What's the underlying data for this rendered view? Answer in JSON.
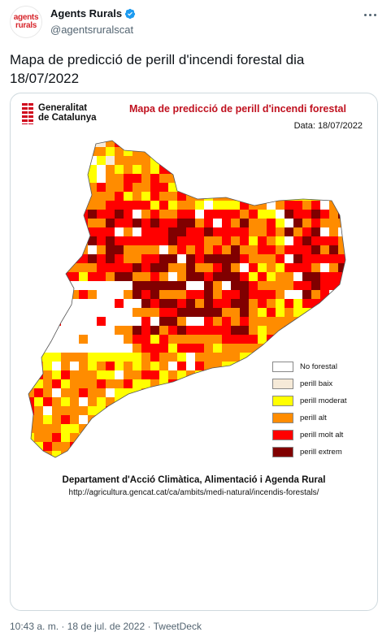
{
  "account": {
    "avatar_line1": "agents",
    "avatar_line2": "rurals",
    "display_name": "Agents Rurals",
    "handle": "@agentsruralscat"
  },
  "tweet": {
    "text": "Mapa de predicció de perill d'incendi forestal dia 18/07/2022",
    "time": "10:43 a. m.",
    "date": "18 de jul. de 2022",
    "source": "TweetDeck",
    "separator": "·"
  },
  "map": {
    "logo_line1": "Generalitat",
    "logo_line2": "de Catalunya",
    "title": "Mapa de predicció de perill d'incendi forestal",
    "date_label": "Data: 18/07/2022",
    "department": "Departament d'Acció Climàtica, Alimentació i Agenda Rural",
    "url": "http://agricultura.gencat.cat/ca/ambits/medi-natural/incendis-forestals/",
    "legend": [
      {
        "label": "No forestal",
        "color": "#ffffff"
      },
      {
        "label": "perill baix",
        "color": "#f6ead8"
      },
      {
        "label": "perill moderat",
        "color": "#ffff00"
      },
      {
        "label": "perill alt",
        "color": "#ff8c00"
      },
      {
        "label": "perill molt alt",
        "color": "#ff0000"
      },
      {
        "label": "perill extrem",
        "color": "#800000"
      }
    ]
  },
  "colors": {
    "verified": "#1d9bf0",
    "muted": "#536471"
  }
}
